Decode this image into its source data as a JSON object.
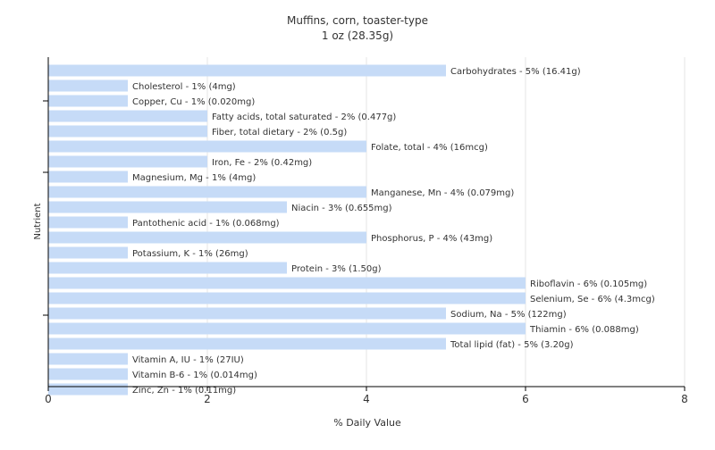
{
  "chart_data": {
    "type": "bar",
    "orientation": "horizontal",
    "title": "Muffins, corn, toaster-type",
    "subtitle": "1 oz (28.35g)",
    "xlabel": "% Daily Value",
    "ylabel": "Nutrient",
    "xlim": [
      0,
      8
    ],
    "xticks": [
      0,
      2,
      4,
      6,
      8
    ],
    "grid": true,
    "bar_color": "#c6dbf7",
    "bars": [
      {
        "value": 5,
        "label": "Carbohydrates - 5% (16.41g)"
      },
      {
        "value": 1,
        "label": "Cholesterol - 1% (4mg)"
      },
      {
        "value": 1,
        "label": "Copper, Cu - 1% (0.020mg)"
      },
      {
        "value": 2,
        "label": "Fatty acids, total saturated - 2% (0.477g)"
      },
      {
        "value": 2,
        "label": "Fiber, total dietary - 2% (0.5g)"
      },
      {
        "value": 4,
        "label": "Folate, total - 4% (16mcg)"
      },
      {
        "value": 2,
        "label": "Iron, Fe - 2% (0.42mg)"
      },
      {
        "value": 1,
        "label": "Magnesium, Mg - 1% (4mg)"
      },
      {
        "value": 4,
        "label": "Manganese, Mn - 4% (0.079mg)"
      },
      {
        "value": 3,
        "label": "Niacin - 3% (0.655mg)"
      },
      {
        "value": 1,
        "label": "Pantothenic acid - 1% (0.068mg)"
      },
      {
        "value": 4,
        "label": "Phosphorus, P - 4% (43mg)"
      },
      {
        "value": 1,
        "label": "Potassium, K - 1% (26mg)"
      },
      {
        "value": 3,
        "label": "Protein - 3% (1.50g)"
      },
      {
        "value": 6,
        "label": "Riboflavin - 6% (0.105mg)"
      },
      {
        "value": 6,
        "label": "Selenium, Se - 6% (4.3mcg)"
      },
      {
        "value": 5,
        "label": "Sodium, Na - 5% (122mg)"
      },
      {
        "value": 6,
        "label": "Thiamin - 6% (0.088mg)"
      },
      {
        "value": 5,
        "label": "Total lipid (fat) - 5% (3.20g)"
      },
      {
        "value": 1,
        "label": "Vitamin A, IU - 1% (27IU)"
      },
      {
        "value": 1,
        "label": "Vitamin B-6 - 1% (0.014mg)"
      },
      {
        "value": 1,
        "label": "Zinc, Zn - 1% (0.11mg)"
      }
    ]
  }
}
